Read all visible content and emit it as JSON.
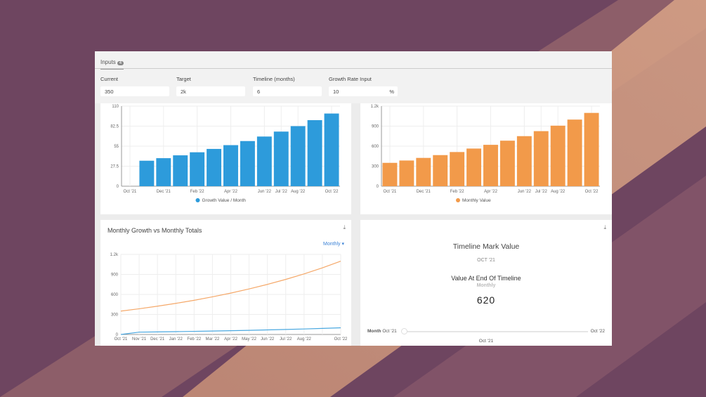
{
  "inputs": {
    "tab_label": "Inputs",
    "tab_count": "4",
    "fields": [
      {
        "label": "Current",
        "value": "350"
      },
      {
        "label": "Target",
        "value": "2k"
      },
      {
        "label": "Timeline (months)",
        "value": "6"
      },
      {
        "label": "Growth Rate Input",
        "value": "10",
        "suffix": "%"
      }
    ]
  },
  "chart_data": [
    {
      "type": "bar",
      "categories": [
        "Oct '21",
        "Nov '21",
        "Dec '21",
        "Jan '22",
        "Feb '22",
        "Mar '22",
        "Apr '22",
        "May '22",
        "Jun '22",
        "Jul '22",
        "Aug '22",
        "Sep '22",
        "Oct '22"
      ],
      "tick_labels": [
        "Oct '21",
        "",
        "Dec '21",
        "",
        "Feb '22",
        "",
        "Apr '22",
        "",
        "Jun '22",
        "Jul '22",
        "Aug '22",
        "",
        "Oct '22"
      ],
      "series": [
        {
          "name": "Growth Value / Month",
          "values": [
            0,
            35,
            38.5,
            42.4,
            46.6,
            51.2,
            56.4,
            62,
            68.2,
            75,
            82.5,
            90.7,
            99.8
          ]
        }
      ],
      "yticks": [
        "0",
        "27.5",
        "55",
        "82.5",
        "110"
      ],
      "ylim": [
        0,
        110
      ],
      "color": "#2d9bdb",
      "legend": "bottom",
      "grid": true
    },
    {
      "type": "bar",
      "categories": [
        "Oct '21",
        "Nov '21",
        "Dec '21",
        "Jan '22",
        "Feb '22",
        "Mar '22",
        "Apr '22",
        "May '22",
        "Jun '22",
        "Jul '22",
        "Aug '22",
        "Sep '22",
        "Oct '22"
      ],
      "tick_labels": [
        "Oct '21",
        "",
        "Dec '21",
        "",
        "Feb '22",
        "",
        "Apr '22",
        "",
        "Jun '22",
        "Jul '22",
        "Aug '22",
        "",
        "Oct '22"
      ],
      "series": [
        {
          "name": "Monthly Value",
          "values": [
            350,
            385,
            424,
            466,
            512,
            564,
            620,
            682,
            750,
            825,
            907,
            998,
            1098
          ]
        }
      ],
      "yticks": [
        "0",
        "300",
        "600",
        "900",
        "1.2k"
      ],
      "ylim": [
        0,
        1200
      ],
      "color": "#f29a4a",
      "legend": "bottom",
      "grid": true
    },
    {
      "type": "line",
      "title": "Monthly Growth vs Monthly Totals",
      "period_select": "Monthly",
      "categories": [
        "Oct '21",
        "Nov '21",
        "Dec '21",
        "Jan '22",
        "Feb '22",
        "Mar '22",
        "Apr '22",
        "May '22",
        "Jun '22",
        "Jul '22",
        "Aug '22",
        "Sep '22",
        "Oct '22"
      ],
      "tick_labels": [
        "Oct '21",
        "Nov '21",
        "Dec '21",
        "Jan '22",
        "Feb '22",
        "Mar '22",
        "Apr '22",
        "May '22",
        "Jun '22",
        "Jul '22",
        "Aug '22",
        "",
        "Oct '22"
      ],
      "series": [
        {
          "values": [
            350,
            385,
            424,
            466,
            512,
            564,
            620,
            682,
            750,
            825,
            907,
            998,
            1098
          ],
          "color": "#f5a869"
        },
        {
          "values": [
            0,
            35,
            38.5,
            42.4,
            46.6,
            51.2,
            56.4,
            62,
            68.2,
            75,
            82.5,
            90.7,
            99.8
          ],
          "color": "#4aa8e0"
        }
      ],
      "yticks": [
        "0",
        "300",
        "600",
        "900",
        "1.2k"
      ],
      "ylim": [
        0,
        1200
      ],
      "grid": true
    }
  ],
  "kpi": {
    "title": "Timeline Mark Value",
    "date": "OCT '21",
    "subtitle": "Value At End Of Timeline",
    "period": "Monthly",
    "value": "620",
    "slider": {
      "label": "Month",
      "start": "Oct '21",
      "end": "Oct '22",
      "current": "Oct '21",
      "position": 0
    }
  }
}
